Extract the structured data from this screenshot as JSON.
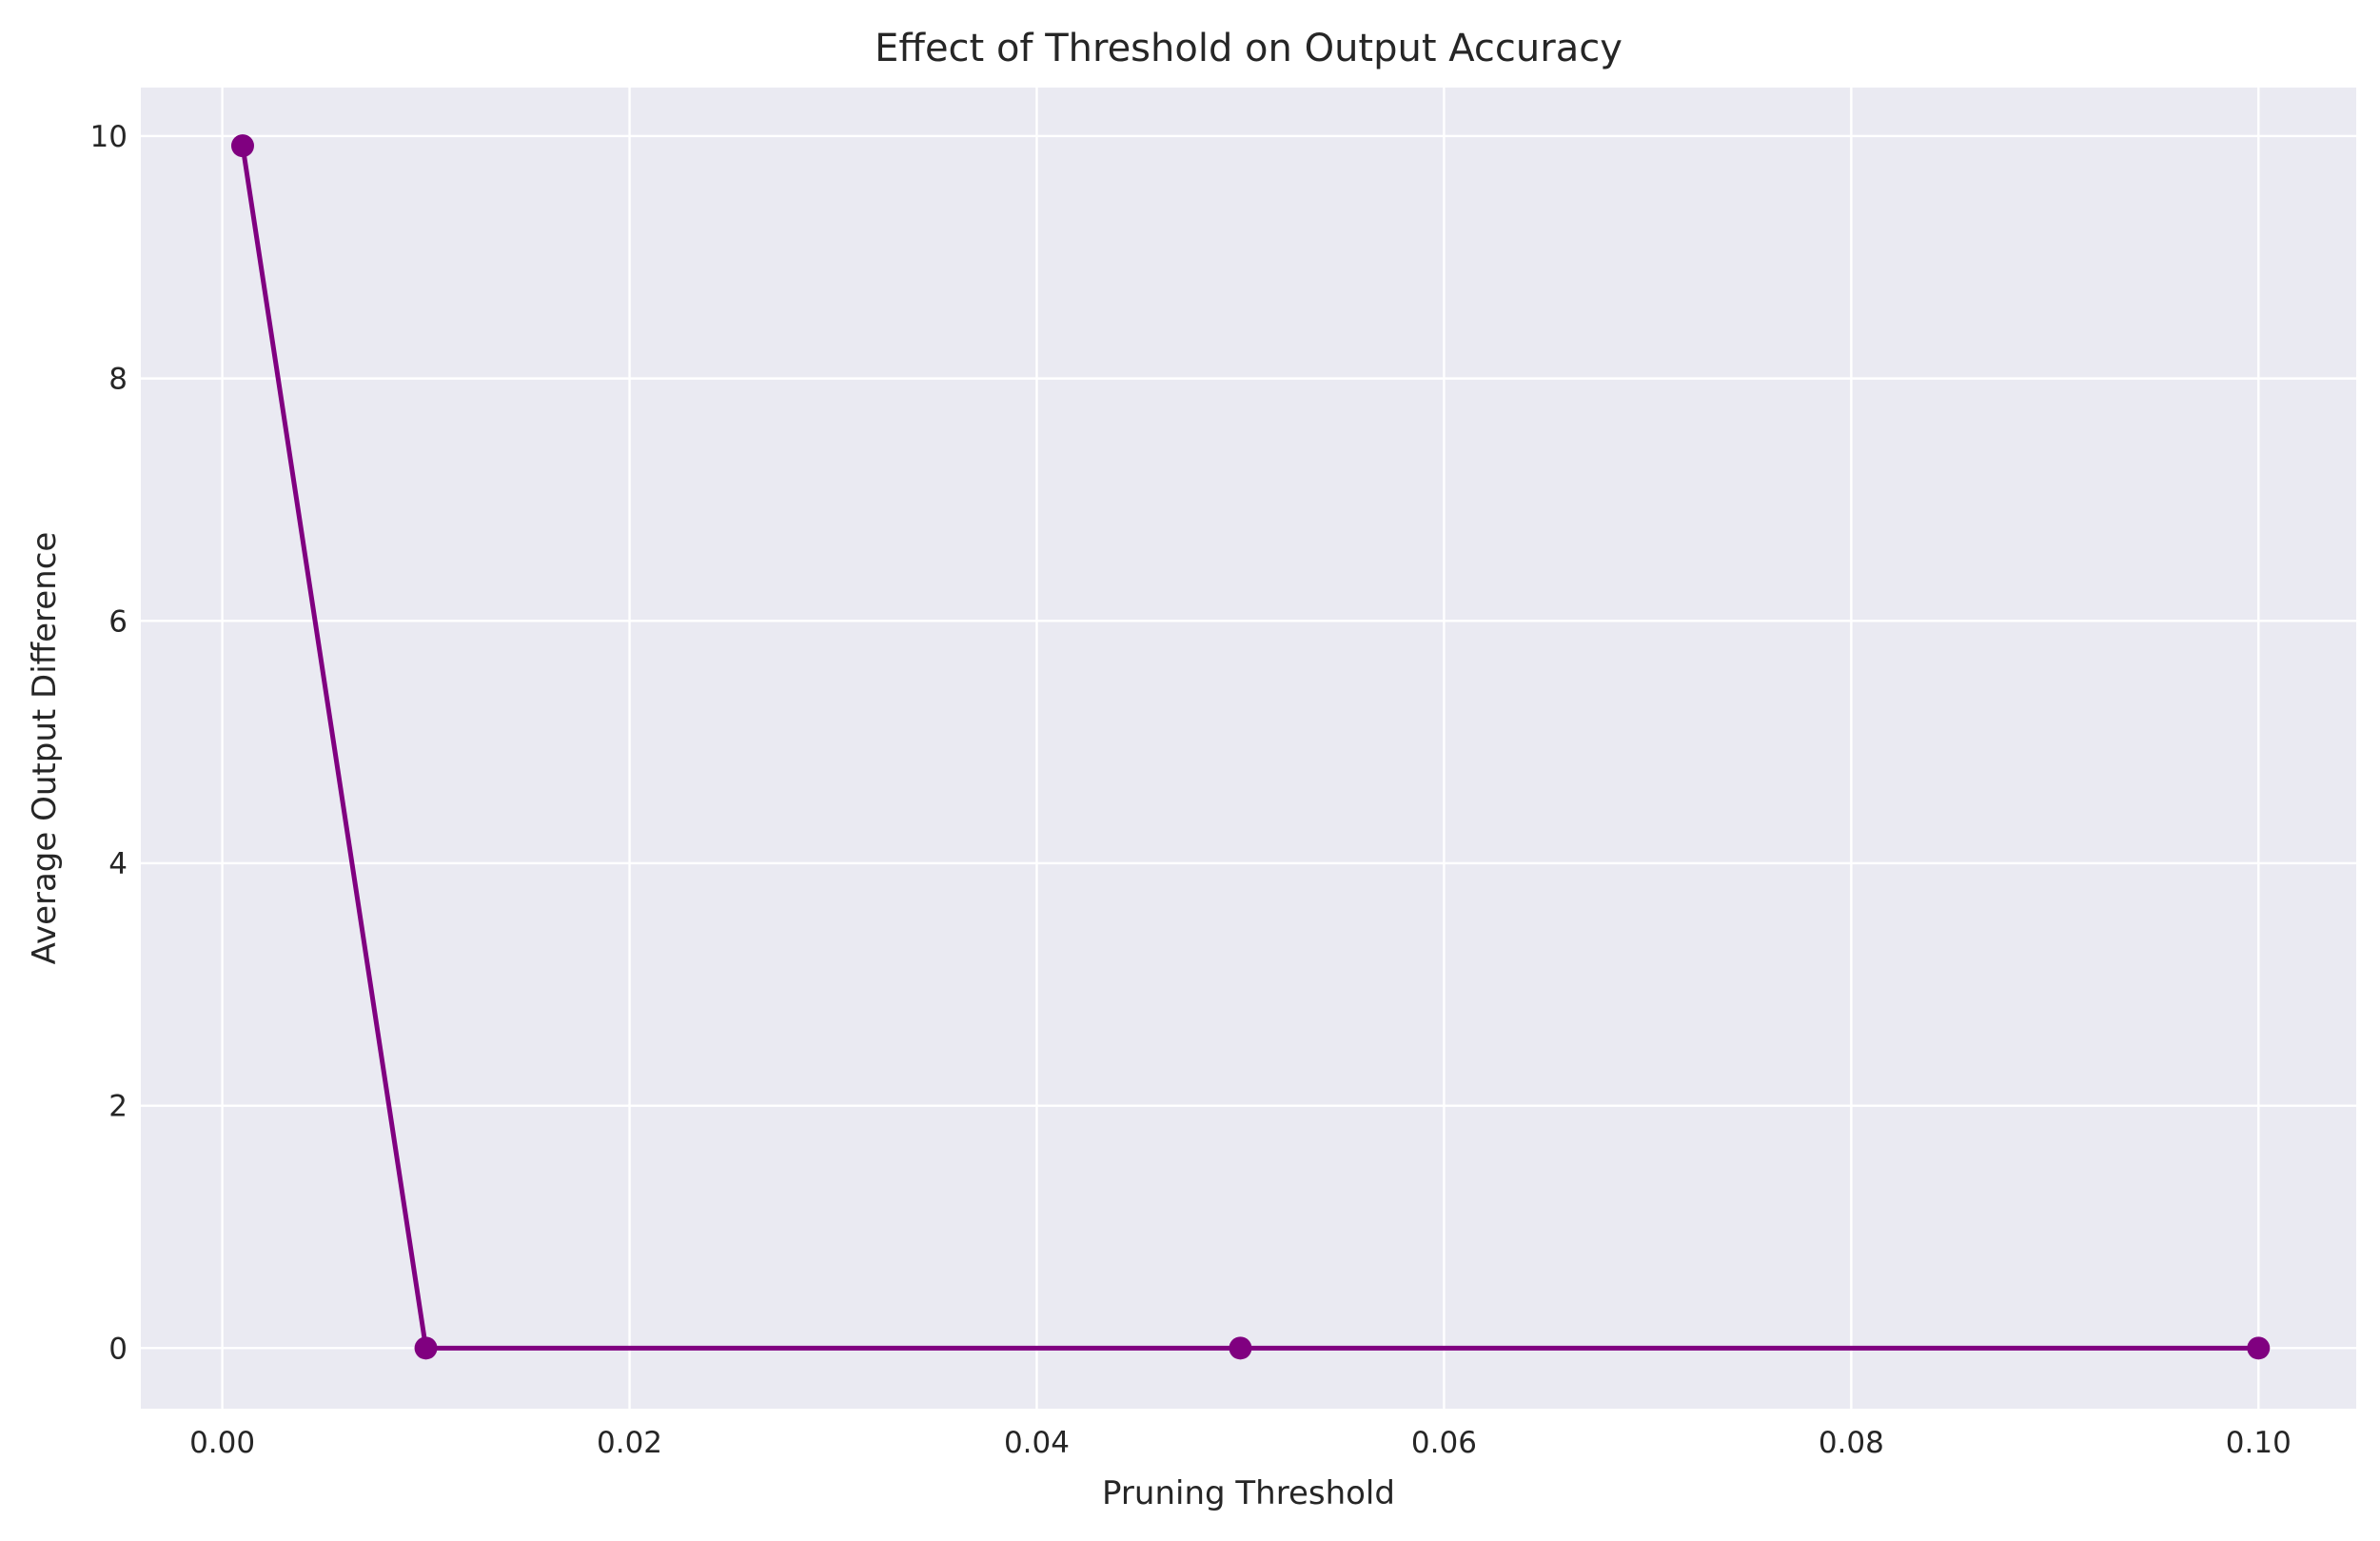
{
  "chart_data": {
    "type": "line",
    "title": "Effect of Threshold on Output Accuracy",
    "xlabel": "Pruning Threshold",
    "ylabel": "Average Output Difference",
    "xlim": [
      -0.004,
      0.1048
    ],
    "ylim": [
      -0.5,
      10.4
    ],
    "x_ticks": [
      0.0,
      0.02,
      0.04,
      0.06,
      0.08,
      0.1
    ],
    "x_tick_labels": [
      "0.00",
      "0.02",
      "0.04",
      "0.06",
      "0.08",
      "0.10"
    ],
    "y_ticks": [
      0,
      2,
      4,
      6,
      8,
      10
    ],
    "y_tick_labels": [
      "0",
      "2",
      "4",
      "6",
      "8",
      "10"
    ],
    "grid": true,
    "series": [
      {
        "x": [
          0.001,
          0.01,
          0.05,
          0.1
        ],
        "values": [
          9.92,
          0.0,
          0.0,
          0.0
        ],
        "color": "#800080",
        "marker": "circle"
      }
    ],
    "background_color": "#eaeaf2",
    "grid_color": "#ffffff"
  }
}
